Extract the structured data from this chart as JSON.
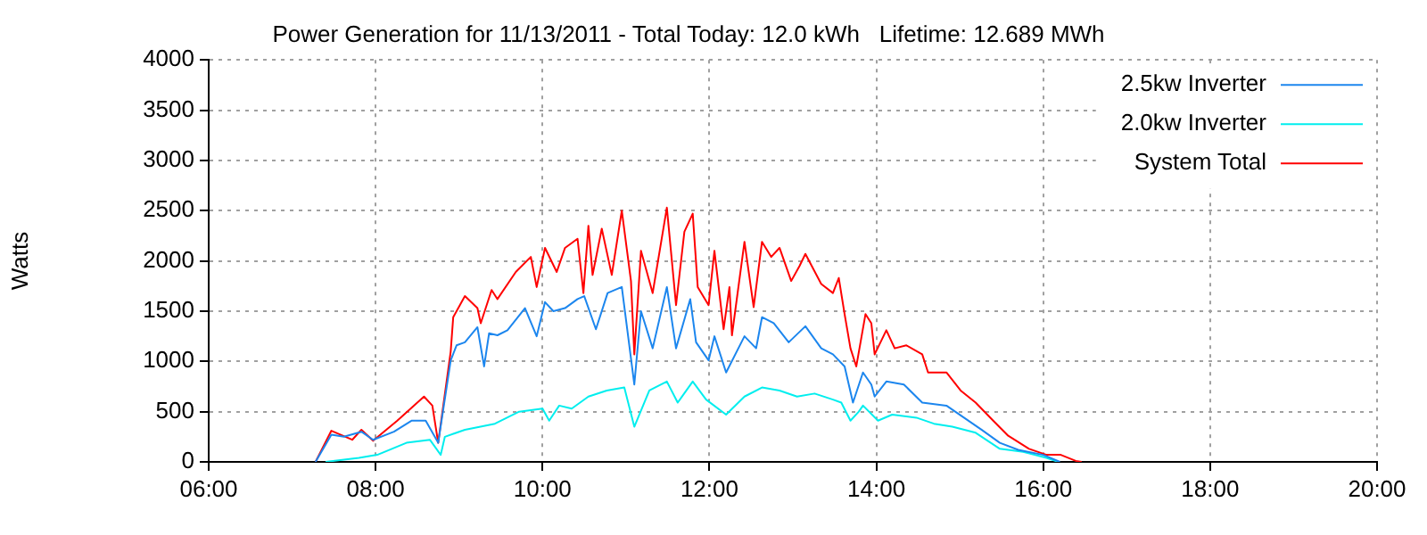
{
  "chart_data": {
    "type": "line",
    "title": "Power Generation for 11/13/2011 - Total Today: 12.0 kWh   Lifetime: 12.689 MWh",
    "ylabel": "Watts",
    "xlim": [
      6,
      20
    ],
    "xticks": [
      {
        "value": 6,
        "label": "06:00"
      },
      {
        "value": 8,
        "label": "08:00"
      },
      {
        "value": 10,
        "label": "10:00"
      },
      {
        "value": 12,
        "label": "12:00"
      },
      {
        "value": 14,
        "label": "14:00"
      },
      {
        "value": 16,
        "label": "16:00"
      },
      {
        "value": 18,
        "label": "18:00"
      },
      {
        "value": 20,
        "label": "20:00"
      }
    ],
    "ylim": [
      0,
      4000
    ],
    "yticks": [
      0,
      500,
      1000,
      1500,
      2000,
      2500,
      3000,
      3500,
      4000
    ],
    "grid": true,
    "legend": "top right",
    "marker": "none",
    "line_style": "solid",
    "series": [
      {
        "name": "2.5kw Inverter",
        "color": "#1c86ee",
        "x": [
          7.28,
          7.47,
          7.62,
          7.83,
          7.97,
          8.22,
          8.43,
          8.6,
          8.75,
          8.9,
          8.97,
          9.07,
          9.22,
          9.3,
          9.36,
          9.46,
          9.58,
          9.79,
          9.93,
          10.03,
          10.13,
          10.27,
          10.42,
          10.5,
          10.64,
          10.78,
          10.95,
          11.1,
          11.18,
          11.32,
          11.49,
          11.6,
          11.77,
          11.84,
          11.99,
          12.06,
          12.2,
          12.42,
          12.56,
          12.63,
          12.77,
          12.95,
          13.15,
          13.34,
          13.48,
          13.62,
          13.72,
          13.84,
          13.94,
          13.98,
          14.12,
          14.33,
          14.55,
          14.84,
          15.05,
          15.26,
          15.48,
          15.7,
          16.0,
          16.2
        ],
        "values": [
          0,
          270,
          250,
          300,
          220,
          300,
          410,
          410,
          190,
          1010,
          1160,
          1190,
          1340,
          950,
          1280,
          1260,
          1310,
          1530,
          1250,
          1590,
          1500,
          1530,
          1620,
          1650,
          1320,
          1680,
          1740,
          770,
          1500,
          1130,
          1740,
          1130,
          1620,
          1190,
          1010,
          1250,
          890,
          1250,
          1130,
          1440,
          1380,
          1190,
          1350,
          1130,
          1070,
          950,
          590,
          890,
          770,
          650,
          800,
          770,
          590,
          560,
          440,
          320,
          190,
          120,
          70,
          0
        ]
      },
      {
        "name": "2.0kw Inverter",
        "color": "#00eeee",
        "x": [
          7.4,
          7.8,
          8.02,
          8.37,
          8.65,
          8.78,
          8.83,
          9.07,
          9.43,
          9.72,
          10.0,
          10.08,
          10.2,
          10.35,
          10.55,
          10.77,
          10.98,
          11.1,
          11.28,
          11.49,
          11.62,
          11.8,
          11.96,
          12.2,
          12.42,
          12.63,
          12.84,
          13.05,
          13.26,
          13.48,
          13.58,
          13.69,
          13.79,
          13.84,
          14.02,
          14.19,
          14.48,
          14.69,
          14.91,
          15.19,
          15.48,
          15.76,
          16.04,
          16.18
        ],
        "values": [
          0,
          40,
          70,
          190,
          220,
          70,
          250,
          320,
          380,
          500,
          530,
          410,
          560,
          530,
          650,
          710,
          740,
          350,
          710,
          800,
          590,
          800,
          620,
          470,
          650,
          740,
          710,
          650,
          680,
          620,
          590,
          410,
          500,
          560,
          410,
          470,
          440,
          380,
          350,
          290,
          130,
          100,
          40,
          0
        ]
      },
      {
        "name": "System Total",
        "color": "#ff0000",
        "x": [
          7.28,
          7.47,
          7.72,
          7.83,
          7.97,
          8.26,
          8.58,
          8.68,
          8.75,
          8.9,
          8.93,
          9.07,
          9.22,
          9.26,
          9.39,
          9.46,
          9.68,
          9.86,
          9.93,
          10.03,
          10.17,
          10.27,
          10.42,
          10.49,
          10.55,
          10.6,
          10.71,
          10.83,
          10.95,
          11.06,
          11.1,
          11.18,
          11.32,
          11.49,
          11.6,
          11.7,
          11.8,
          11.86,
          11.99,
          12.06,
          12.17,
          12.24,
          12.27,
          12.42,
          12.53,
          12.63,
          12.74,
          12.84,
          12.98,
          13.08,
          13.15,
          13.34,
          13.48,
          13.55,
          13.62,
          13.69,
          13.76,
          13.87,
          13.94,
          13.98,
          14.12,
          14.22,
          14.36,
          14.55,
          14.62,
          14.84,
          15.01,
          15.19,
          15.4,
          15.58,
          15.83,
          16.04,
          16.21,
          16.39,
          16.46
        ],
        "values": [
          0,
          310,
          220,
          320,
          210,
          410,
          650,
          560,
          190,
          1100,
          1440,
          1650,
          1530,
          1380,
          1710,
          1620,
          1890,
          2040,
          1740,
          2130,
          1890,
          2130,
          2220,
          1680,
          2350,
          1860,
          2320,
          1860,
          2500,
          1800,
          1070,
          2100,
          1680,
          2530,
          1560,
          2290,
          2470,
          1740,
          1560,
          2100,
          1320,
          1740,
          1260,
          2190,
          1540,
          2190,
          2040,
          2130,
          1800,
          1950,
          2070,
          1770,
          1680,
          1830,
          1470,
          1130,
          950,
          1470,
          1380,
          1070,
          1310,
          1130,
          1160,
          1070,
          890,
          890,
          710,
          590,
          410,
          260,
          130,
          70,
          70,
          10,
          0
        ]
      }
    ]
  }
}
